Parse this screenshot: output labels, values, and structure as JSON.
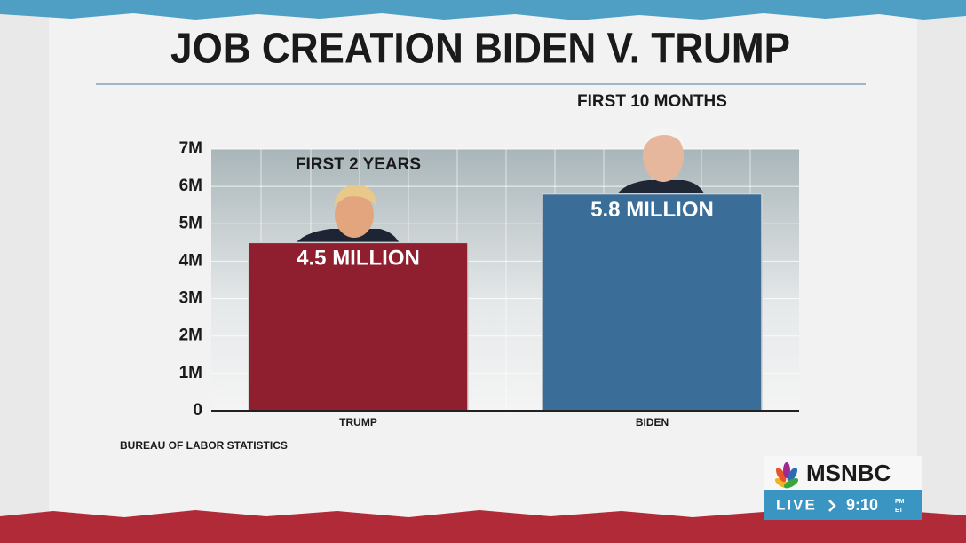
{
  "chart_data": {
    "type": "bar",
    "title": "JOB CREATION BIDEN V. TRUMP",
    "categories": [
      "TRUMP",
      "BIDEN"
    ],
    "values": [
      4500000,
      5800000
    ],
    "value_labels": [
      "4.5 MILLION",
      "5.8 MILLION"
    ],
    "annotations": [
      "FIRST 2 YEARS",
      "FIRST 10 MONTHS"
    ],
    "colors": [
      "#8f1f2f",
      "#3a6e99"
    ],
    "ylim": [
      0,
      7000000
    ],
    "yticks": [
      0,
      {
        "value": 1000000,
        "label": "1M"
      },
      {
        "value": 2000000,
        "label": "2M"
      },
      {
        "value": 3000000,
        "label": "3M"
      },
      {
        "value": 4000000,
        "label": "4M"
      },
      {
        "value": 5000000,
        "label": "5M"
      },
      {
        "value": 6000000,
        "label": "6M"
      },
      {
        "value": 7000000,
        "label": "7M"
      }
    ],
    "grid": true,
    "source": "BUREAU OF LABOR STATISTICS"
  },
  "broadcast": {
    "network": "MSNBC",
    "status": "LIVE",
    "time": "9:10",
    "meridiem": "PM",
    "zone": "ET"
  }
}
